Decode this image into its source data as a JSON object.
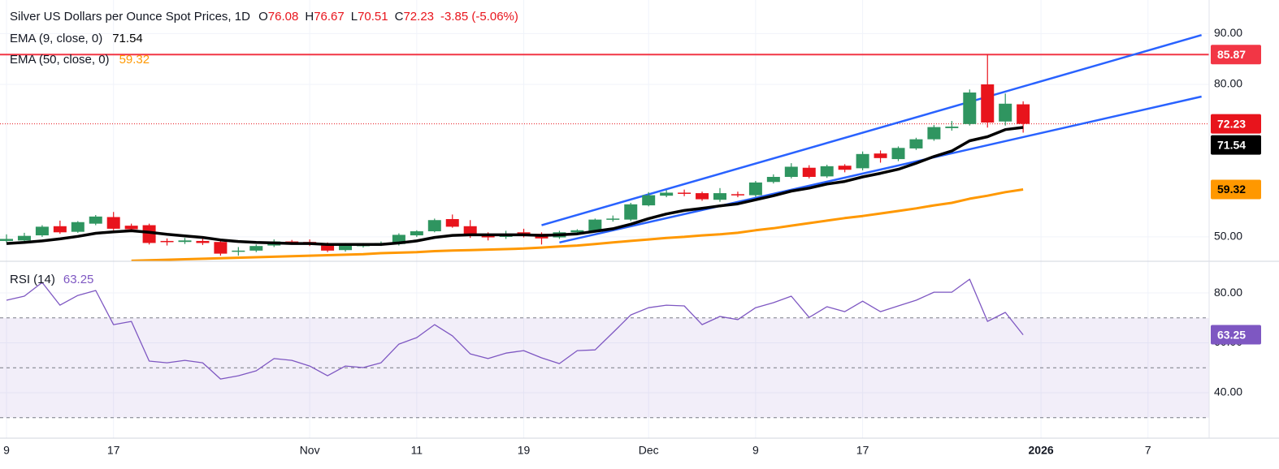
{
  "chart_data": [
    {
      "type": "candlestick",
      "title": "Silver US Dollars per Ounce Spot Prices, 1D",
      "ohlc_legend": [
        {
          "key": "O",
          "value": 76.08
        },
        {
          "key": "H",
          "value": 76.67
        },
        {
          "key": "L",
          "value": 70.51
        },
        {
          "key": "C",
          "value": 72.23
        }
      ],
      "change": "-3.85 (-5.06%)",
      "categories": [
        "9",
        null,
        null,
        null,
        null,
        null,
        "17",
        null,
        null,
        null,
        null,
        null,
        null,
        null,
        null,
        null,
        null,
        "Nov",
        null,
        null,
        null,
        null,
        null,
        "11",
        null,
        null,
        null,
        null,
        null,
        "19",
        null,
        null,
        null,
        null,
        null,
        null,
        "Dec",
        null,
        null,
        null,
        null,
        null,
        "9",
        null,
        null,
        null,
        null,
        null,
        "17",
        null,
        null,
        null,
        null,
        null,
        null,
        null,
        null,
        null,
        "2026",
        null,
        null,
        null,
        null,
        null,
        "7",
        null,
        null,
        null
      ],
      "open": [
        49.2,
        49.3,
        50.3,
        52.1,
        51.0,
        52.6,
        53.9,
        52.2,
        52.3,
        49.2,
        49.0,
        49.2,
        49.0,
        47.2,
        47.3,
        48.3,
        49.1,
        49.0,
        48.7,
        47.4,
        48.3,
        48.5,
        48.6,
        50.3,
        51.1,
        53.5,
        52.1,
        50.6,
        50.0,
        50.9,
        50.6,
        49.9,
        50.9,
        51.2,
        53.4,
        53.4,
        56.2,
        58.1,
        58.7,
        58.6,
        57.3,
        58.4,
        58.2,
        60.8,
        61.8,
        63.6,
        61.9,
        64.0,
        63.5,
        66.4,
        65.3,
        67.4,
        69.2,
        71.4,
        72.2,
        80.0,
        72.7,
        76.08,
        null,
        null,
        null,
        null,
        null,
        null,
        null,
        null,
        null,
        null
      ],
      "high": [
        50.5,
        50.8,
        52.3,
        53.2,
        53.1,
        54.3,
        54.9,
        52.6,
        52.6,
        49.7,
        49.8,
        49.6,
        49.3,
        48.0,
        48.5,
        49.5,
        49.4,
        49.5,
        48.9,
        48.8,
        48.8,
        49.1,
        50.7,
        51.3,
        53.6,
        54.4,
        53.3,
        50.9,
        51.2,
        51.6,
        50.9,
        51.2,
        51.5,
        53.6,
        54.2,
        56.7,
        58.8,
        59.2,
        59.3,
        58.9,
        59.6,
        58.9,
        61.0,
        62.3,
        64.5,
        64.1,
        64.2,
        64.3,
        66.8,
        67.0,
        67.8,
        69.5,
        72.0,
        72.8,
        79.0,
        85.87,
        78.2,
        76.67,
        null,
        null,
        null,
        null,
        null,
        null,
        null,
        null,
        null,
        null
      ],
      "low": [
        48.9,
        49.0,
        50.0,
        50.6,
        50.8,
        52.3,
        51.3,
        51.0,
        48.5,
        48.3,
        48.6,
        48.4,
        46.3,
        46.3,
        47.0,
        48.0,
        48.5,
        48.2,
        47.0,
        47.1,
        47.9,
        48.2,
        48.3,
        50.0,
        50.9,
        51.8,
        49.8,
        49.3,
        49.6,
        49.9,
        48.5,
        49.6,
        50.6,
        51.0,
        53.0,
        53.1,
        56.0,
        57.8,
        58.0,
        57.1,
        56.9,
        57.8,
        57.9,
        60.5,
        61.5,
        61.5,
        61.6,
        62.7,
        63.1,
        64.6,
        64.9,
        67.1,
        68.9,
        70.9,
        71.9,
        71.5,
        71.9,
        70.51,
        null,
        null,
        null,
        null,
        null,
        null,
        null,
        null,
        null,
        null
      ],
      "close": [
        49.6,
        50.2,
        52.0,
        50.9,
        52.9,
        54.0,
        51.6,
        51.5,
        48.8,
        49.0,
        49.3,
        48.8,
        46.7,
        47.3,
        48.2,
        49.1,
        48.8,
        48.6,
        47.3,
        48.5,
        48.4,
        48.8,
        50.4,
        51.1,
        53.3,
        52.0,
        50.2,
        49.9,
        50.5,
        50.2,
        49.7,
        50.9,
        51.3,
        53.4,
        53.6,
        56.4,
        58.2,
        58.7,
        58.5,
        57.4,
        58.6,
        58.3,
        60.7,
        61.8,
        63.8,
        61.8,
        63.9,
        63.2,
        66.3,
        65.5,
        67.5,
        69.2,
        71.6,
        71.7,
        78.4,
        72.5,
        76.2,
        72.23,
        null,
        null,
        null,
        null,
        null,
        null,
        null,
        null,
        null,
        null
      ],
      "up_color": "#2f9560",
      "down_color": "#e8141c",
      "series": [
        {
          "name": "EMA (9, close, 0)",
          "color": "#000000",
          "values": [
            48.7,
            48.9,
            49.2,
            49.6,
            50.1,
            50.7,
            51.0,
            51.2,
            50.9,
            50.5,
            50.2,
            49.9,
            49.4,
            49.1,
            48.9,
            48.8,
            48.7,
            48.7,
            48.5,
            48.5,
            48.5,
            48.5,
            48.8,
            49.2,
            49.9,
            50.3,
            50.4,
            50.4,
            50.4,
            50.4,
            50.3,
            50.4,
            50.6,
            51.1,
            51.6,
            52.5,
            53.6,
            54.5,
            55.2,
            55.6,
            56.1,
            56.5,
            57.3,
            58.1,
            59.0,
            59.6,
            60.4,
            60.9,
            61.8,
            62.5,
            63.3,
            64.5,
            65.8,
            66.9,
            68.9,
            69.7,
            71.1,
            71.54,
            null,
            null,
            null,
            null,
            null,
            null,
            null,
            null,
            null,
            null
          ]
        },
        {
          "name": "EMA (50, close, 0)",
          "color": "#ff9800",
          "values": [
            null,
            null,
            null,
            null,
            null,
            null,
            null,
            45.3,
            45.4,
            45.5,
            45.6,
            45.7,
            45.8,
            45.9,
            46.0,
            46.1,
            46.2,
            46.3,
            46.4,
            46.5,
            46.6,
            46.8,
            46.9,
            47.0,
            47.2,
            47.3,
            47.4,
            47.5,
            47.6,
            47.7,
            47.9,
            48.1,
            48.3,
            48.6,
            48.9,
            49.2,
            49.5,
            49.8,
            50.0,
            50.3,
            50.5,
            50.8,
            51.3,
            51.7,
            52.2,
            52.7,
            53.2,
            53.7,
            54.1,
            54.6,
            55.1,
            55.6,
            56.2,
            56.7,
            57.5,
            58.1,
            58.8,
            59.32,
            null,
            null,
            null,
            null,
            null,
            null,
            null,
            null,
            null,
            null
          ]
        }
      ],
      "hlines": [
        {
          "value": 85.87,
          "color": "#f23645"
        }
      ],
      "trend_lines": [
        {
          "from": [
            30,
            52.3
          ],
          "to": [
            67,
            89.7
          ],
          "color": "#2962ff"
        },
        {
          "from": [
            31,
            48.9
          ],
          "to": [
            67,
            77.6
          ],
          "color": "#2962ff"
        }
      ],
      "ylim": [
        45.2,
        96.6
      ],
      "yticks": [
        {
          "value": 90,
          "label": "90.00"
        },
        {
          "value": 80,
          "label": "80.00"
        },
        {
          "value": 50,
          "label": "50.00"
        }
      ],
      "grid": true
    },
    {
      "type": "line",
      "title": "RSI (14)",
      "color": "#7e57c2",
      "values": [
        77.1,
        78.7,
        84.2,
        75.1,
        79.0,
        81.0,
        67.3,
        68.6,
        52.7,
        52.0,
        53.0,
        52.0,
        45.5,
        46.8,
        48.8,
        53.7,
        53.0,
        50.7,
        46.8,
        50.7,
        50.1,
        52.0,
        59.5,
        62.1,
        67.3,
        62.8,
        55.6,
        53.7,
        55.9,
        56.9,
        54.0,
        51.7,
        56.9,
        57.2,
        64.1,
        71.2,
        74.1,
        75.1,
        74.8,
        67.3,
        70.6,
        69.3,
        74.1,
        76.1,
        78.7,
        70.2,
        74.5,
        72.5,
        76.7,
        72.5,
        74.8,
        77.1,
        80.3,
        80.3,
        85.5,
        68.6,
        72.2,
        63.25,
        null,
        null,
        null,
        null,
        null,
        null,
        null,
        null,
        null,
        null
      ],
      "bands": [
        70,
        50,
        30
      ],
      "ylim": [
        21.8,
        92.7
      ],
      "yticks": [
        {
          "value": 80,
          "label": "80.00"
        },
        {
          "value": 60,
          "label": "60.00"
        },
        {
          "value": 40,
          "label": "40.00"
        }
      ],
      "grid": true
    }
  ]
}
